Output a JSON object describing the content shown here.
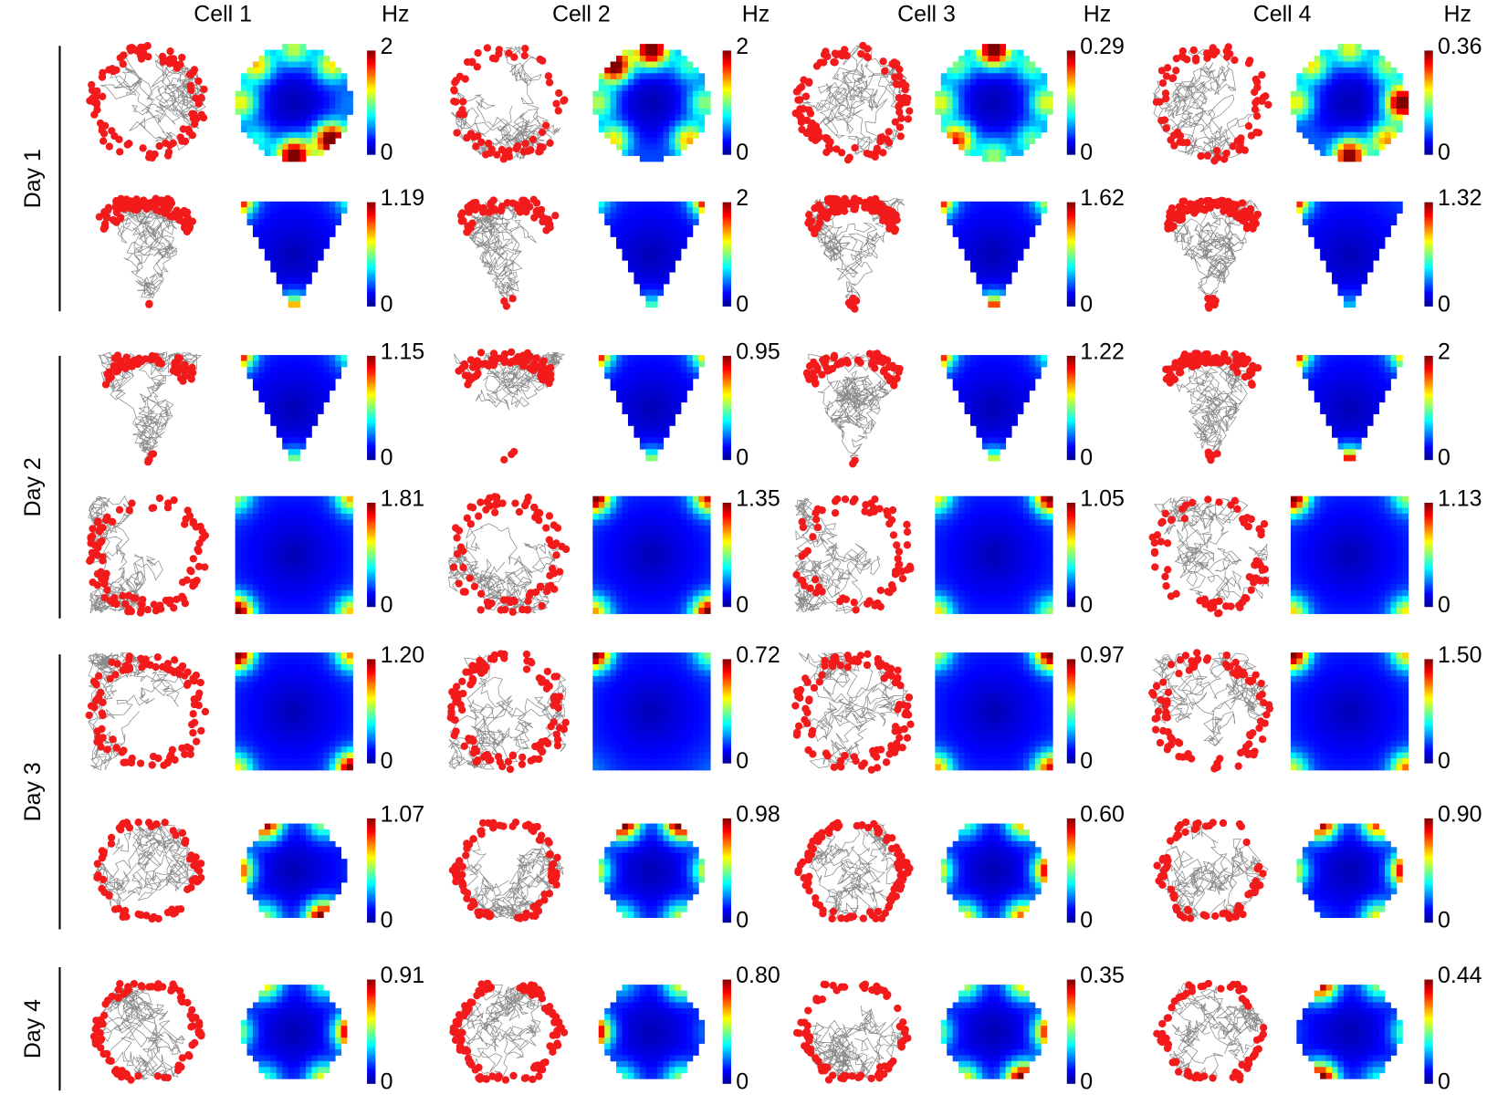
{
  "header": {
    "cells": [
      "Cell 1",
      "Cell 2",
      "Cell 3",
      "Cell 4"
    ],
    "unit": "Hz"
  },
  "colorbar_min": "0",
  "days": [
    {
      "label": "Day 1",
      "rows": [
        [
          "2",
          "2",
          "0.29",
          "0.36"
        ],
        [
          "1.19",
          "2",
          "1.62",
          "1.32"
        ]
      ]
    },
    {
      "label": "Day 2",
      "rows": [
        [
          "1.15",
          "0.95",
          "1.22",
          "2"
        ],
        [
          "1.81",
          "1.35",
          "1.05",
          "1.13"
        ]
      ]
    },
    {
      "label": "Day 3",
      "rows": [
        [
          "1.20",
          "0.72",
          "0.97",
          "1.50"
        ],
        [
          "1.07",
          "0.98",
          "0.60",
          "0.90"
        ]
      ]
    },
    {
      "label": "Day 4",
      "rows": [
        [
          "0.91",
          "0.80",
          "0.35",
          "0.44"
        ]
      ]
    }
  ]
}
